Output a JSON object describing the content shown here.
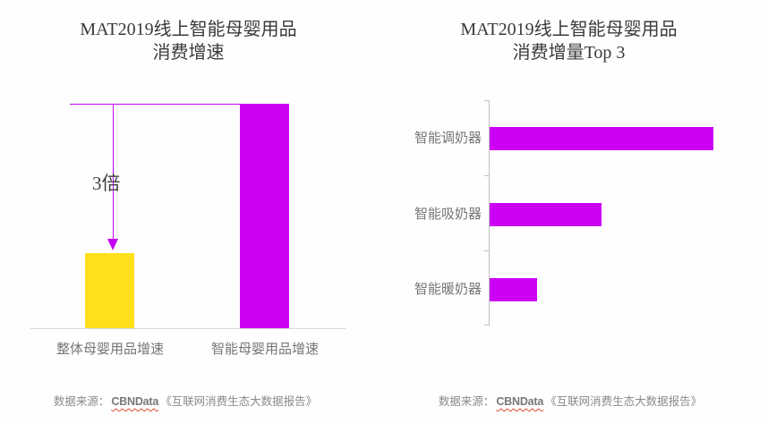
{
  "titles": {
    "left_line1": "MAT2019线上智能母婴用品",
    "left_line2": "消费增速",
    "right_line1": "MAT2019线上智能母婴用品",
    "right_line2": "消费增量Top 3"
  },
  "source": {
    "prefix": "数据来源：",
    "brand": "CBNData",
    "report": "《互联网消费生态大数据报告》"
  },
  "colors": {
    "bar_magenta": "#cc00f5",
    "bar_yellow": "#ffe01a",
    "annotation_magenta": "#c304f3",
    "axis_gray": "#bfbfbf",
    "baseline_gray": "#d9d9d9",
    "label_gray": "#757575",
    "title_dark": "#3a3a3a",
    "source_gray": "#8a8a8a",
    "wavy_underline_red": "#e0472e"
  },
  "chart_data": [
    {
      "type": "bar",
      "title": "MAT2019线上智能母婴用品消费增速",
      "categories": [
        "整体母婴用品增速",
        "智能母婴用品增速"
      ],
      "values": [
        1,
        3
      ],
      "value_unit": "relative_growth_multiple",
      "annotation": "3倍",
      "bar_colors": [
        "#ffe01a",
        "#cc00f5"
      ],
      "xlabel": "",
      "ylabel": "",
      "axis_values_shown": false,
      "grid": false
    },
    {
      "type": "bar",
      "orientation": "horizontal",
      "title": "MAT2019线上智能母婴用品消费增量Top 3",
      "categories": [
        "智能调奶器",
        "智能吸奶器",
        "智能暖奶器"
      ],
      "values": [
        100,
        50,
        21
      ],
      "value_unit": "relative_length_percent_of_max",
      "bar_color": "#cc00f5",
      "xlabel": "",
      "ylabel": "",
      "axis_values_shown": false,
      "grid": false
    }
  ]
}
